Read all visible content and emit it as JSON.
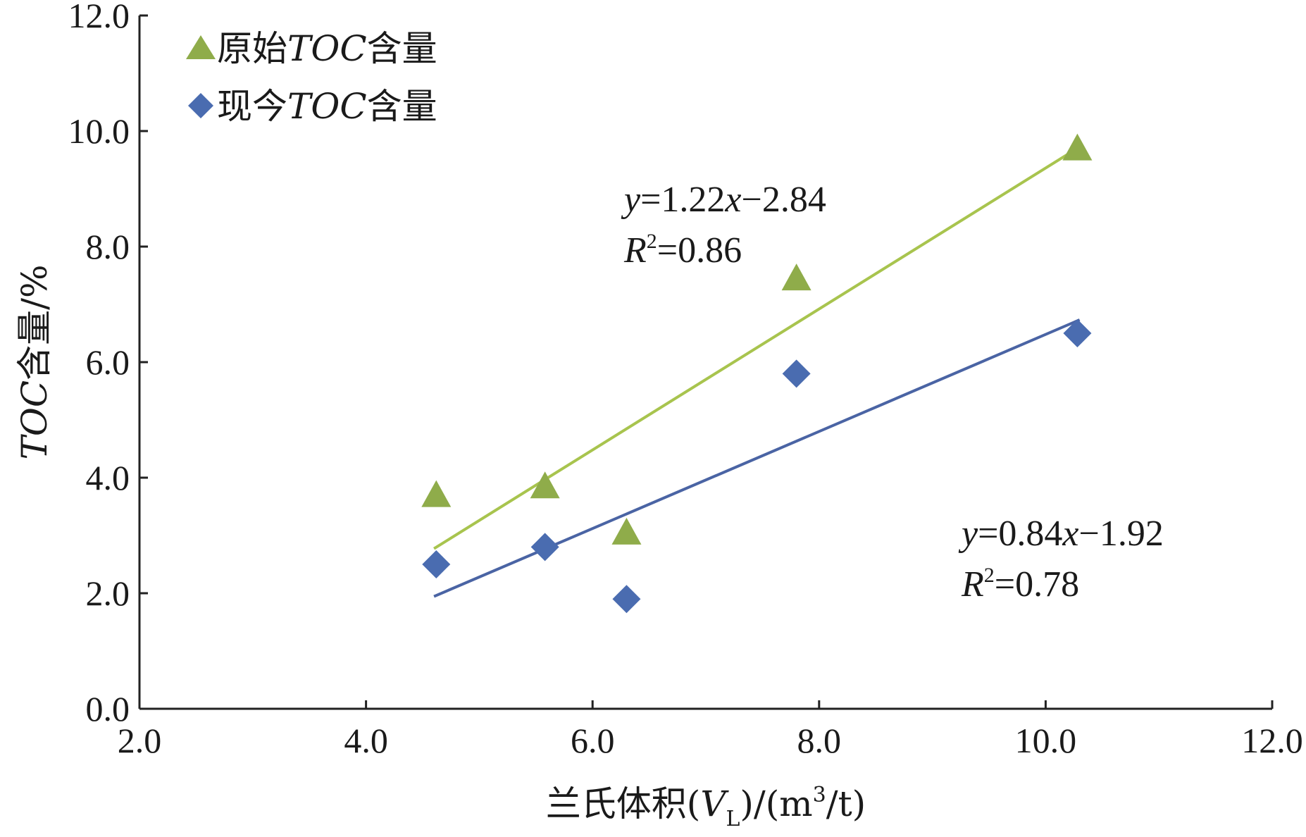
{
  "chart_data": {
    "type": "scatter",
    "title": "",
    "xlabel": "兰氏体积(VL)/(m³/t)",
    "xlabel_parts": {
      "prefix": "兰氏体积(",
      "var": "V",
      "sub": "L",
      "suffix": ")/(m",
      "sup": "3",
      "end": "/t)"
    },
    "ylabel": "TOC含量/%",
    "ylabel_parts": {
      "var": "TOC",
      "suffix": "含量/%"
    },
    "xlim": [
      2.0,
      12.0
    ],
    "ylim": [
      0.0,
      12.0
    ],
    "x_ticks": [
      "2.0",
      "4.0",
      "6.0",
      "8.0",
      "10.0",
      "12.0"
    ],
    "y_ticks": [
      "0.0",
      "2.0",
      "4.0",
      "6.0",
      "8.0",
      "10.0",
      "12.0"
    ],
    "grid": false,
    "legend_position": "top-left",
    "series": [
      {
        "name": "原始TOC含量",
        "name_parts": {
          "prefix": "原始",
          "var": "TOC",
          "suffix": "含量"
        },
        "marker": "triangle",
        "color": "#8fac4a",
        "line_color": "#a8c44e",
        "points": [
          {
            "x": 4.62,
            "y": 3.7
          },
          {
            "x": 5.58,
            "y": 3.85
          },
          {
            "x": 6.3,
            "y": 3.05
          },
          {
            "x": 7.8,
            "y": 7.45
          },
          {
            "x": 10.28,
            "y": 9.7
          }
        ],
        "trendline": {
          "slope": 1.22,
          "intercept": -2.84,
          "x_range": [
            4.6,
            10.3
          ]
        },
        "equation": {
          "y_var": "y",
          "eq_text": "=1.22",
          "x_var": "x",
          "tail": "−2.84"
        },
        "r2": {
          "var": "R",
          "sup": "2",
          "value": "=0.86"
        }
      },
      {
        "name": "现今TOC含量",
        "name_parts": {
          "prefix": "现今",
          "var": "TOC",
          "suffix": "含量"
        },
        "marker": "diamond",
        "color": "#4a6cb0",
        "line_color": "#4a64a4",
        "points": [
          {
            "x": 4.62,
            "y": 2.5
          },
          {
            "x": 5.58,
            "y": 2.8
          },
          {
            "x": 6.3,
            "y": 1.9
          },
          {
            "x": 7.8,
            "y": 5.8
          },
          {
            "x": 10.28,
            "y": 6.5
          }
        ],
        "trendline": {
          "slope": 0.84,
          "intercept": -1.92,
          "x_range": [
            4.6,
            10.3
          ]
        },
        "equation": {
          "y_var": "y",
          "eq_text": "=0.84",
          "x_var": "x",
          "tail": "−1.92"
        },
        "r2": {
          "var": "R",
          "sup": "2",
          "value": "=0.78"
        }
      }
    ]
  }
}
